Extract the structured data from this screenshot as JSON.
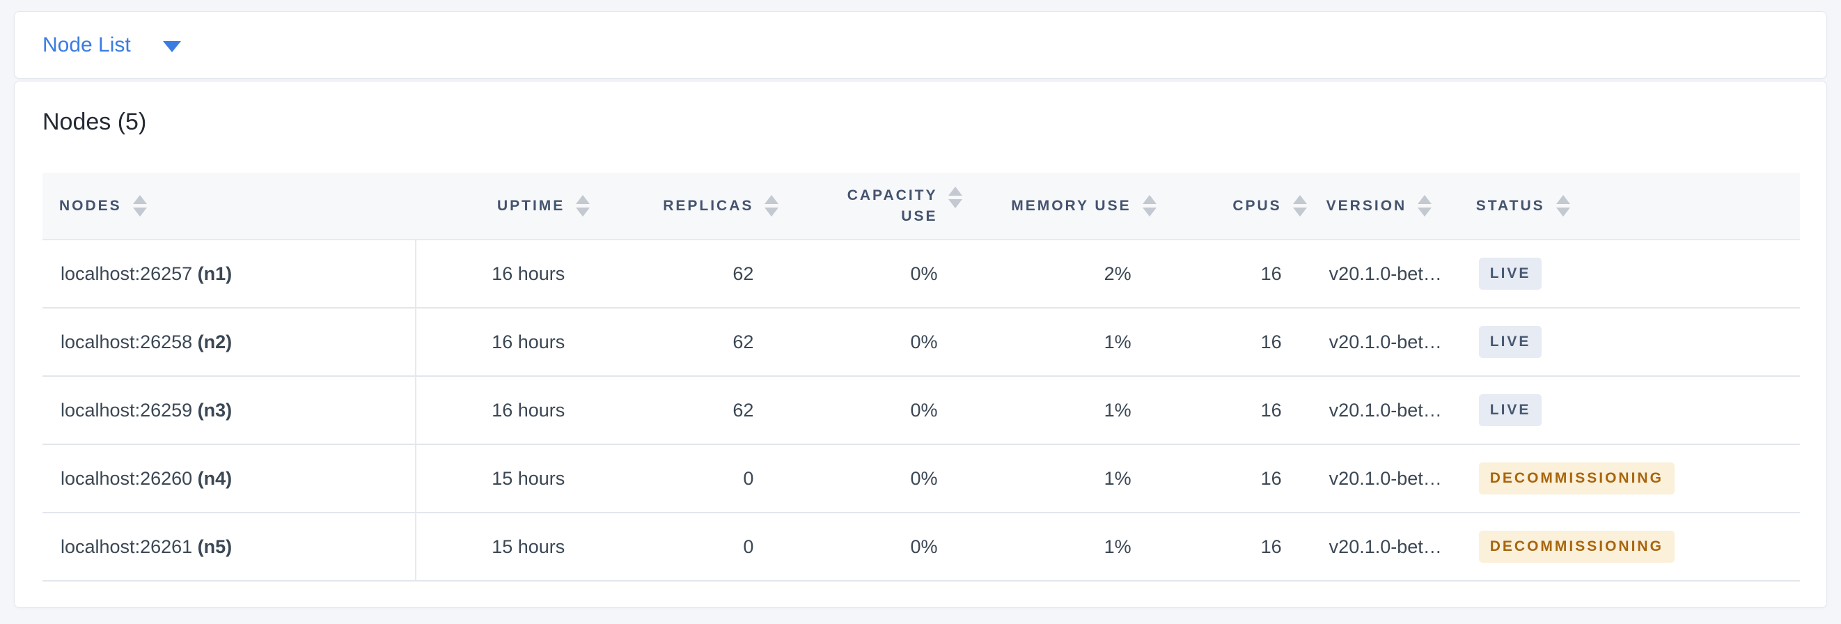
{
  "topbar": {
    "view_selector": {
      "label": "Node List",
      "icon": "caret-down"
    }
  },
  "main": {
    "title": "Nodes (5)",
    "table": {
      "columns": [
        {
          "key": "nodes",
          "label": "NODES",
          "align": "left",
          "sortable": true,
          "sort_icon": "sort-arrows"
        },
        {
          "key": "uptime",
          "label": "UPTIME",
          "align": "right",
          "sortable": true,
          "sort_icon": "sort-arrows"
        },
        {
          "key": "replicas",
          "label": "REPLICAS",
          "align": "right",
          "sortable": true,
          "sort_icon": "sort-arrows"
        },
        {
          "key": "capacity_use",
          "label": "CAPACITY USE",
          "align": "right",
          "sortable": true,
          "sort_icon": "sort-arrows"
        },
        {
          "key": "memory_use",
          "label": "MEMORY USE",
          "align": "right",
          "sortable": true,
          "sort_icon": "sort-arrows"
        },
        {
          "key": "cpus",
          "label": "CPUS",
          "align": "right",
          "sortable": true,
          "sort_icon": "sort-arrows"
        },
        {
          "key": "version",
          "label": "VERSION",
          "align": "left",
          "sortable": true,
          "sort_icon": "sort-arrows"
        },
        {
          "key": "status",
          "label": "STATUS",
          "align": "left",
          "sortable": true,
          "sort_icon": "sort-arrows"
        }
      ],
      "rows": [
        {
          "nodes": "localhost:26257",
          "node_id": "(n1)",
          "uptime": "16 hours",
          "replicas": "62",
          "capacity_use": "0%",
          "memory_use": "2%",
          "cpus": "16",
          "version": "v20.1.0-bet…",
          "status": "LIVE",
          "status_type": "live"
        },
        {
          "nodes": "localhost:26258",
          "node_id": "(n2)",
          "uptime": "16 hours",
          "replicas": "62",
          "capacity_use": "0%",
          "memory_use": "1%",
          "cpus": "16",
          "version": "v20.1.0-bet…",
          "status": "LIVE",
          "status_type": "live"
        },
        {
          "nodes": "localhost:26259",
          "node_id": "(n3)",
          "uptime": "16 hours",
          "replicas": "62",
          "capacity_use": "0%",
          "memory_use": "1%",
          "cpus": "16",
          "version": "v20.1.0-bet…",
          "status": "LIVE",
          "status_type": "live"
        },
        {
          "nodes": "localhost:26260",
          "node_id": "(n4)",
          "uptime": "15 hours",
          "replicas": "0",
          "capacity_use": "0%",
          "memory_use": "1%",
          "cpus": "16",
          "version": "v20.1.0-bet…",
          "status": "DECOMMISSIONING",
          "status_type": "decommissioning"
        },
        {
          "nodes": "localhost:26261",
          "node_id": "(n5)",
          "uptime": "15 hours",
          "replicas": "0",
          "capacity_use": "0%",
          "memory_use": "1%",
          "cpus": "16",
          "version": "v20.1.0-bet…",
          "status": "DECOMMISSIONING",
          "status_type": "decommissioning"
        }
      ]
    }
  },
  "colors": {
    "page_bg": "#f4f6fa",
    "card_bg": "#ffffff",
    "card_border": "#e3e7ee",
    "header_bg": "#f7f8fa",
    "header_text": "#44536e",
    "cell_text": "#3b4754",
    "row_border": "#e2e6ed",
    "divider": "#e6e9ef",
    "sort_icon": "#c3c8d1",
    "accent_blue": "#3a7ce2",
    "title_text": "#242a33",
    "live_bg": "#e7ebf3",
    "live_text": "#475872",
    "decommissioning_bg": "#fbf0d9",
    "decommissioning_text": "#a8650e"
  }
}
